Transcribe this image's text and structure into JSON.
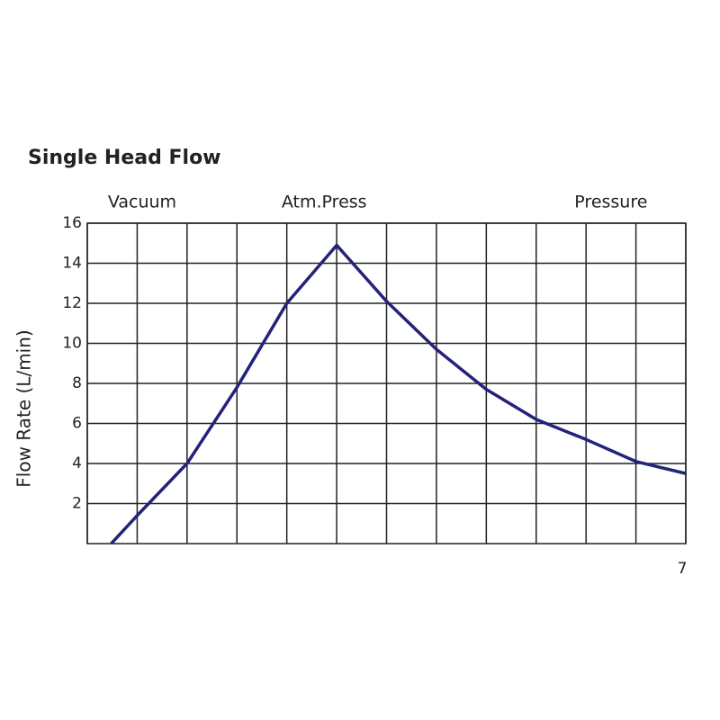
{
  "chart_data": {
    "type": "line",
    "title": "Single Head Flow",
    "ylabel": "Flow Rate  (L/min)",
    "annotations": [
      {
        "text": "Vacuum",
        "x": -3.9
      },
      {
        "text": "Atm.Press",
        "x": -0.25
      },
      {
        "text": "Pressure",
        "x": 5.5
      }
    ],
    "xlim": [
      -5,
      7
    ],
    "xticks": [
      {
        "value": -5,
        "label": null
      },
      {
        "value": -4,
        "label": null
      },
      {
        "value": -3,
        "label": null
      },
      {
        "value": -2,
        "label": null
      },
      {
        "value": -1,
        "label": null
      },
      {
        "value": 0,
        "label": null
      },
      {
        "value": 1,
        "label": null
      },
      {
        "value": 2,
        "label": null
      },
      {
        "value": 3,
        "label": null
      },
      {
        "value": 4,
        "label": null
      },
      {
        "value": 5,
        "label": null
      },
      {
        "value": 6,
        "label": null
      },
      7
    ],
    "ylim": [
      0,
      16
    ],
    "yticks": [
      2,
      4,
      6,
      8,
      10,
      12,
      14,
      16
    ],
    "grid": true,
    "x": [
      -4.52,
      -4,
      -3,
      -2,
      -1,
      0,
      1,
      2,
      3,
      4,
      5,
      6,
      7
    ],
    "series": [
      {
        "name": null,
        "color": "#23237a",
        "values": [
          0,
          1.4,
          4.0,
          7.8,
          12.0,
          14.9,
          12.1,
          9.7,
          7.7,
          6.2,
          5.2,
          4.1,
          3.5
        ]
      }
    ]
  }
}
